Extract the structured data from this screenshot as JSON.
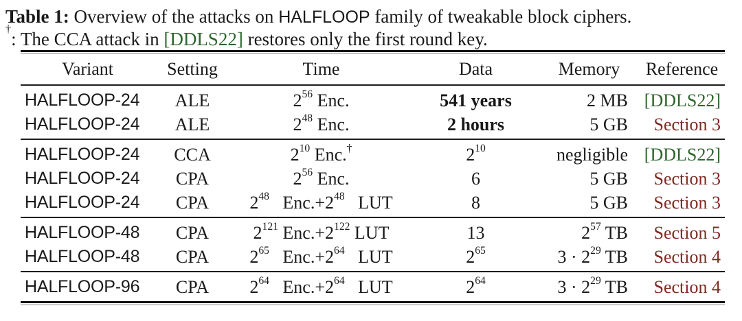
{
  "colors": {
    "citation_green": "#2e662e",
    "link_maroon": "#7d2b23",
    "text": "#1a1a1a"
  },
  "caption": {
    "label": "Table 1:",
    "intro": " Overview of the attacks on ",
    "cipher_family": "HALFLOOP",
    "outro": " family of tweakable block ciphers.",
    "footnote_prefix": "^{†}: The CCA attack in ",
    "footnote_citation": "[DDLS22]",
    "footnote_suffix": " restores only the first round key."
  },
  "table": {
    "headers": [
      "Variant",
      "Setting",
      "Time",
      "Data",
      "Memory",
      "Reference"
    ],
    "groups": [
      {
        "rows": [
          {
            "variant": "HALFLOOP-24",
            "setting": "ALE",
            "time": "2^{56} Enc.",
            "data": "541 years",
            "data_bold": true,
            "memory": "2 MB",
            "reference": "[DDLS22]",
            "ref_type": "citation"
          },
          {
            "variant": "HALFLOOP-24",
            "setting": "ALE",
            "time": "2^{48} Enc.",
            "data": "2 hours",
            "data_bold": true,
            "memory": "5 GB",
            "reference": "Section 3",
            "ref_type": "link"
          }
        ]
      },
      {
        "rows": [
          {
            "variant": "HALFLOOP-24",
            "setting": "CCA",
            "time": "2^{10} Enc.^{†}",
            "data": "2^{10}",
            "data_bold": false,
            "memory": "negligible",
            "reference": "[DDLS22]",
            "ref_type": "citation"
          },
          {
            "variant": "HALFLOOP-24",
            "setting": "CPA",
            "time": "2^{56} Enc.",
            "data": "6",
            "data_bold": false,
            "memory": "5 GB",
            "reference": "Section 3",
            "ref_type": "link"
          },
          {
            "variant": "HALFLOOP-24",
            "setting": "CPA",
            "time": "2^{48}  Enc.+2^{48}  LUT",
            "data": "8",
            "data_bold": false,
            "memory": "5 GB",
            "reference": "Section 3",
            "ref_type": "link"
          }
        ]
      },
      {
        "rows": [
          {
            "variant": "HALFLOOP-48",
            "setting": "CPA",
            "time": "2^{121} Enc.+2^{122} LUT",
            "data": "13",
            "data_bold": false,
            "memory": "2^{57} TB",
            "reference": "Section 5",
            "ref_type": "link"
          },
          {
            "variant": "HALFLOOP-48",
            "setting": "CPA",
            "time": "2^{65}  Enc.+2^{64}  LUT",
            "data": "2^{65}",
            "data_bold": false,
            "memory": "3 · 2^{29} TB",
            "reference": "Section 4",
            "ref_type": "link"
          }
        ]
      },
      {
        "rows": [
          {
            "variant": "HALFLOOP-96",
            "setting": "CPA",
            "time": "2^{64}  Enc.+2^{64}  LUT",
            "data": "2^{64}",
            "data_bold": false,
            "memory": "3 · 2^{29} TB",
            "reference": "Section 4",
            "ref_type": "link"
          }
        ]
      }
    ]
  }
}
